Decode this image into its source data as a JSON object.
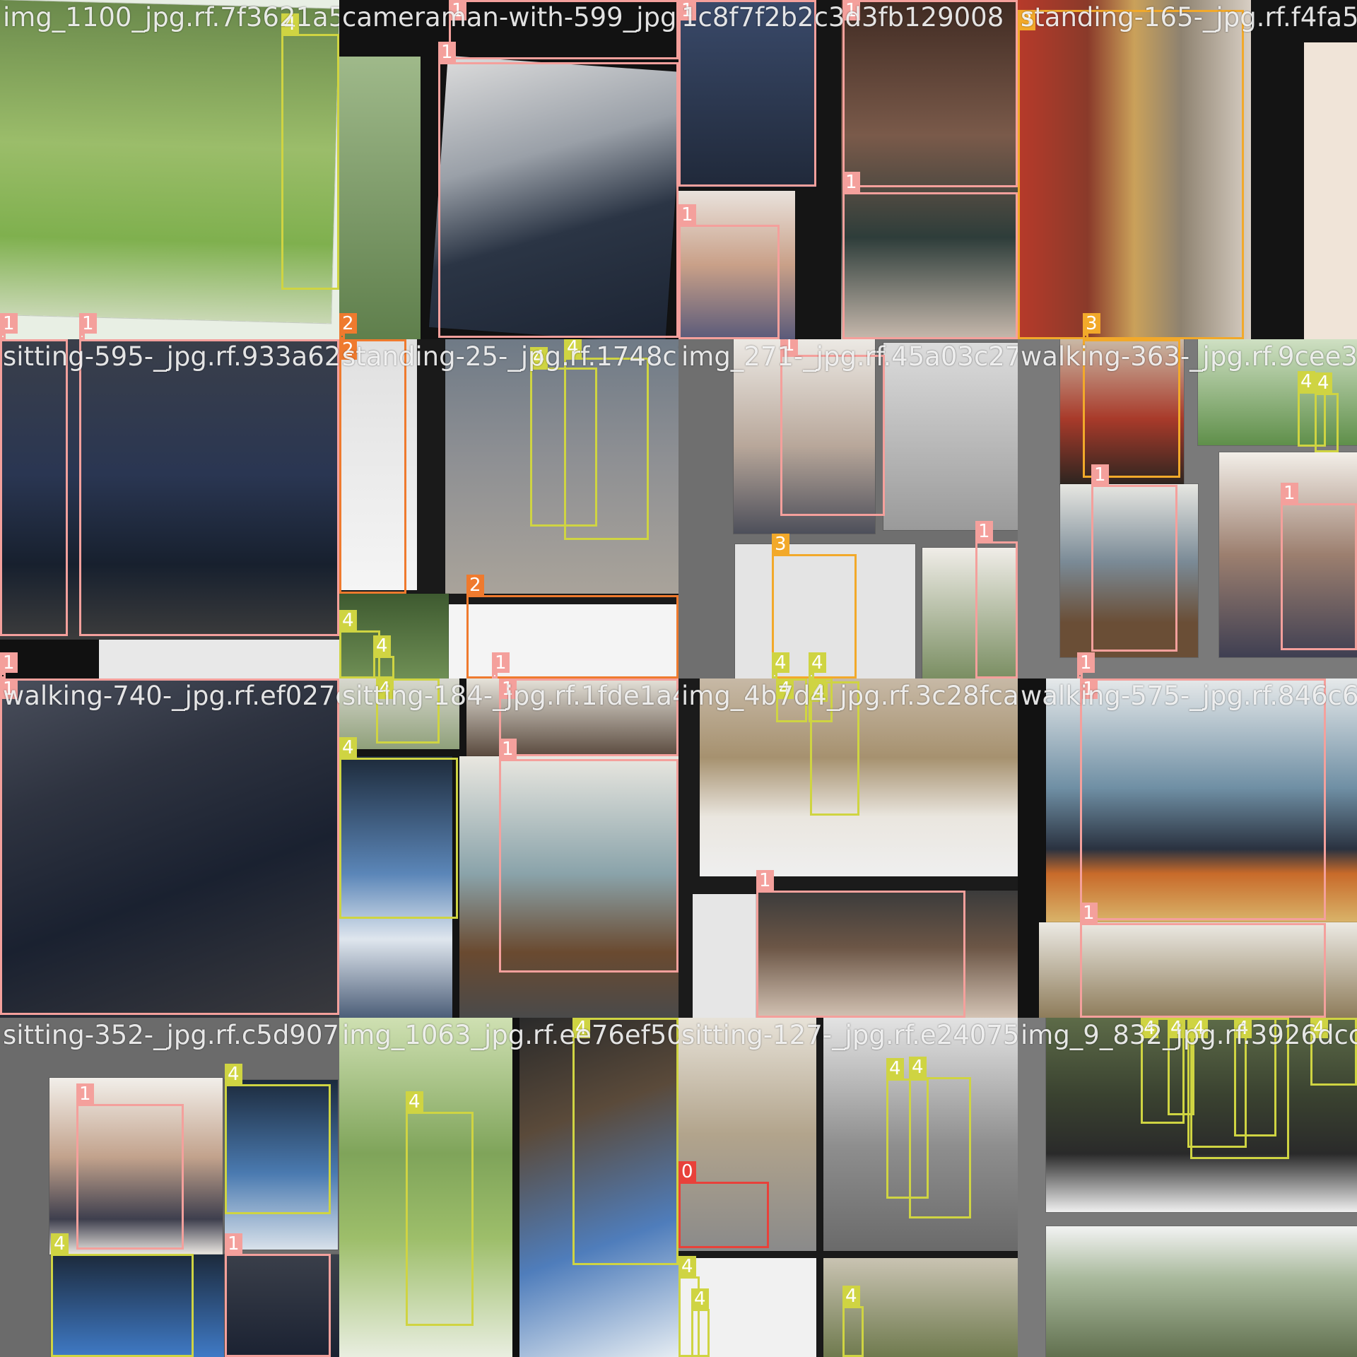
{
  "classes": {
    "0": {
      "label": "0",
      "color": "#e8413a"
    },
    "1": {
      "label": "1",
      "color": "#f4a09c"
    },
    "2": {
      "label": "2",
      "color": "#ef7a2e"
    },
    "3": {
      "label": "3",
      "color": "#f2a92a"
    },
    "4": {
      "label": "4",
      "color": "#cfd442"
    }
  },
  "tiles": [
    {
      "id": "t00",
      "filename": "img_1100_jpg.rf.7f3621a56"
    },
    {
      "id": "t01",
      "filename": "cameraman-with-599_jpg.rf.153f"
    },
    {
      "id": "t02",
      "filename": "1c8f7f2b2c3d3fb129008"
    },
    {
      "id": "t03",
      "filename": "standing-165-_jpg.rf.f4fa5ea"
    },
    {
      "id": "t10",
      "filename": "sitting-595-_jpg.rf.933a6222"
    },
    {
      "id": "t11",
      "filename": "standing-25-_jpg.rf.1748c76"
    },
    {
      "id": "t12",
      "filename": "img_271-_jpg.rf.45a03c27787"
    },
    {
      "id": "t13",
      "filename": "walking-363-_jpg.rf.9cee3"
    },
    {
      "id": "t20",
      "filename": "walking-740-_jpg.rf.ef027e6f"
    },
    {
      "id": "t21",
      "filename": "sitting-184-_jpg.rf.1fde1a44"
    },
    {
      "id": "t22",
      "filename": "img_4b7d4_jpg.rf.3c28fca49cd7"
    },
    {
      "id": "t23",
      "filename": "walking-575-_jpg.rf.846c6aa"
    },
    {
      "id": "t30",
      "filename": "sitting-352-_jpg.rf.c5d9079d8"
    },
    {
      "id": "t31",
      "filename": "img_1063_jpg.rf.ee76ef507f0"
    },
    {
      "id": "t32",
      "filename": "sitting-127-_jpg.rf.e240754b293"
    },
    {
      "id": "t33",
      "filename": "img_9_832_jpg.rf.3926dccb5"
    }
  ]
}
